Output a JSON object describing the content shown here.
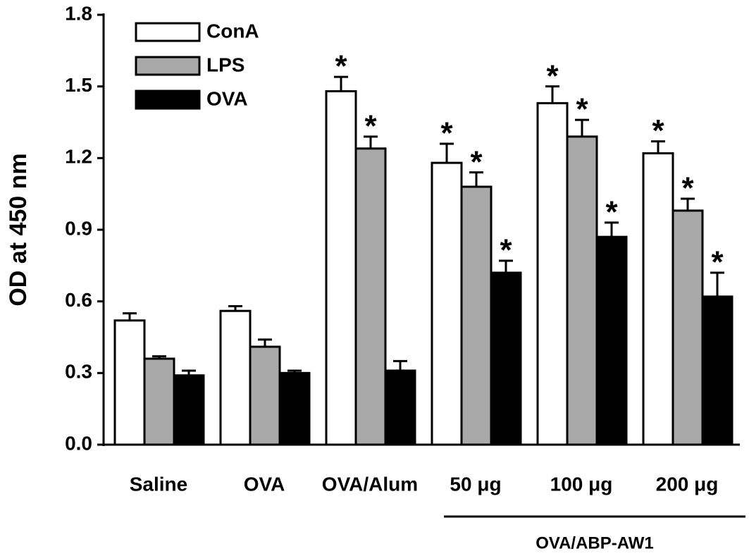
{
  "chart_data": {
    "type": "bar",
    "y_label": "OD at 450 nm",
    "categories": [
      "Saline",
      "OVA",
      "OVA/Alum",
      "50 μg",
      "100 μg",
      "200 μg"
    ],
    "group_label": "OVA/ABP-AW1",
    "ylim": [
      0,
      1.8
    ],
    "yticks": [
      {
        "value": 0,
        "label": "0.0"
      },
      0.3,
      0.6,
      0.9,
      1.2,
      1.5,
      1.8
    ],
    "legend": "top-left",
    "series": [
      {
        "name": "ConA",
        "color": "#ffffff",
        "values": [
          0.52,
          0.56,
          1.48,
          1.18,
          1.43,
          1.22
        ],
        "errors": [
          0.03,
          0.02,
          0.06,
          0.08,
          0.07,
          0.05
        ],
        "significance": [
          null,
          null,
          "*",
          "*",
          "*",
          "*"
        ]
      },
      {
        "name": "LPS",
        "color": "#a9a9a9",
        "values": [
          0.36,
          0.41,
          1.24,
          1.08,
          1.29,
          0.98
        ],
        "errors": [
          0.01,
          0.03,
          0.05,
          0.06,
          0.07,
          0.05
        ],
        "significance": [
          null,
          null,
          "*",
          "*",
          "*",
          "*"
        ]
      },
      {
        "name": "OVA",
        "color": "#000000",
        "values": [
          0.29,
          0.3,
          0.31,
          0.72,
          0.87,
          0.62
        ],
        "errors": [
          0.02,
          0.01,
          0.04,
          0.05,
          0.06,
          0.1
        ],
        "significance": [
          null,
          null,
          null,
          "*",
          "*",
          "*"
        ]
      }
    ]
  }
}
